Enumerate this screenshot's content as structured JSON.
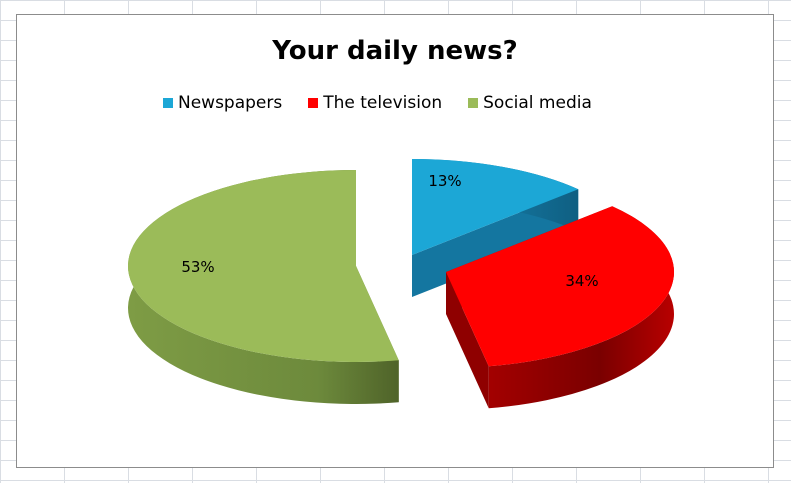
{
  "chart_data": {
    "type": "pie",
    "title": "Your daily news?",
    "legend_position": "top",
    "exploded": true,
    "style": "3d",
    "categories": [
      "Newspapers",
      "The television",
      "Social media"
    ],
    "values": [
      13,
      34,
      53
    ],
    "data_labels": [
      "13%",
      "34%",
      "53%"
    ],
    "colors": [
      "#1ca7d6",
      "#ff0000",
      "#9bbb59"
    ],
    "side_colors": [
      "#1476a0",
      "#8f0000",
      "#67803a"
    ]
  }
}
